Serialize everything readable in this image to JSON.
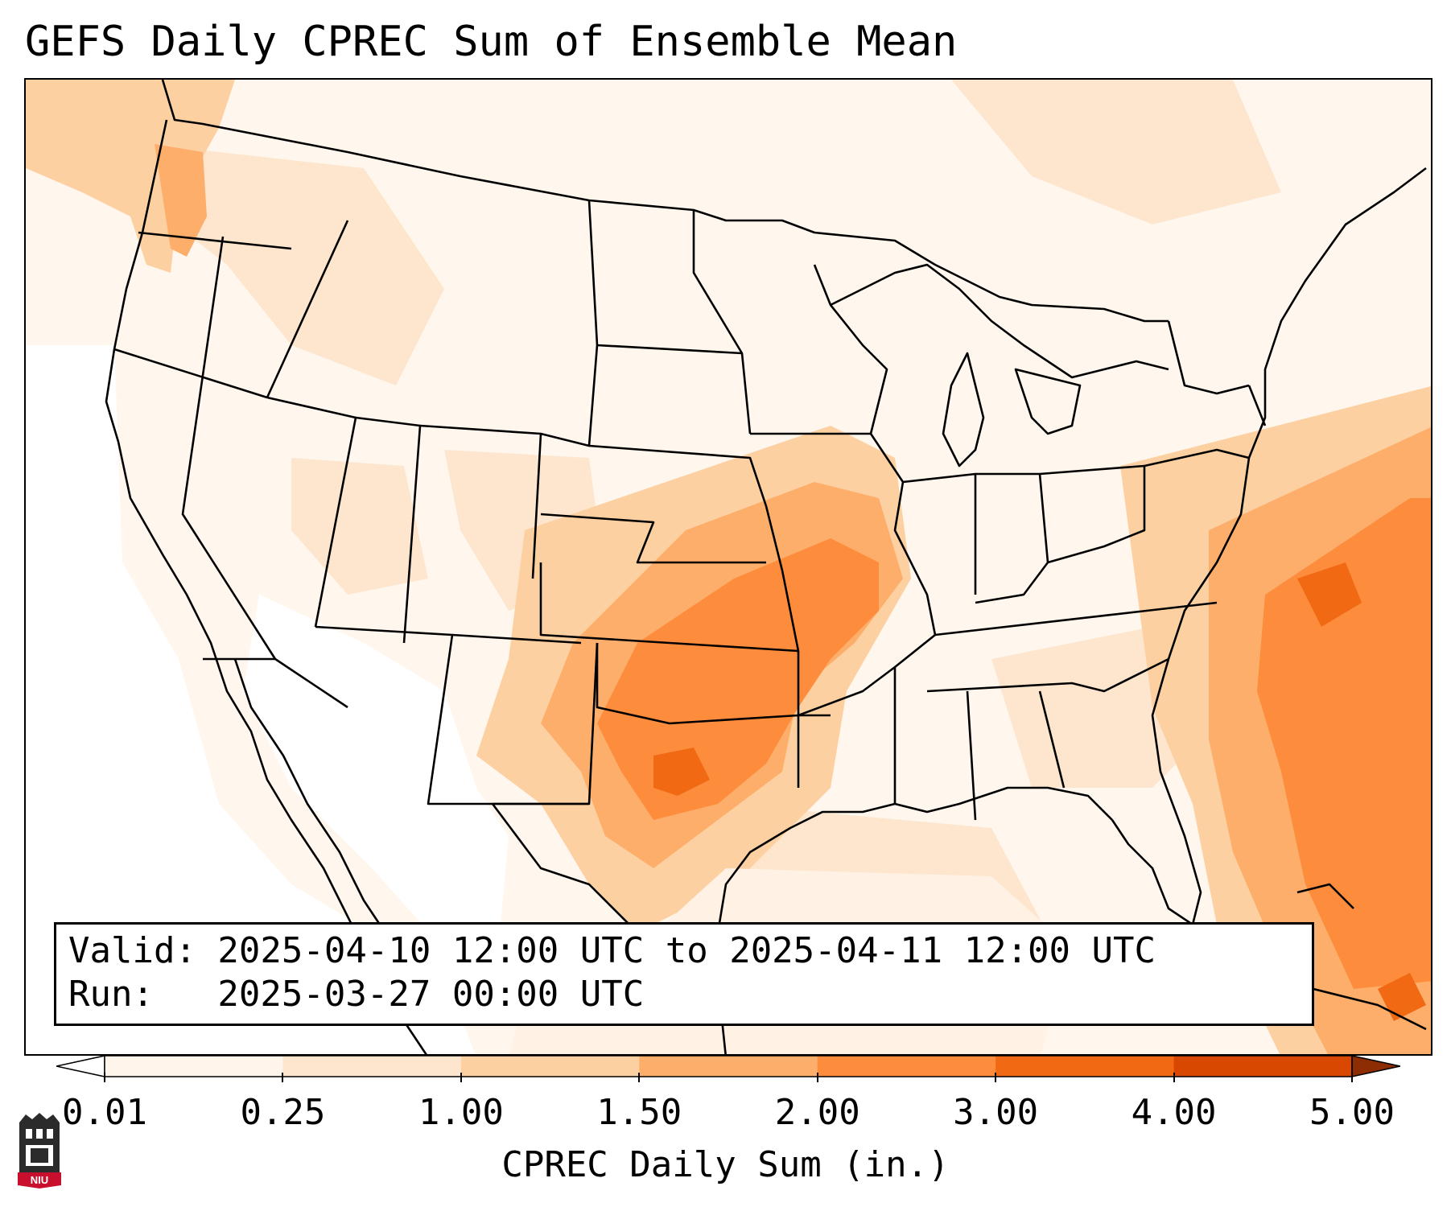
{
  "title": "GEFS Daily CPREC Sum of Ensemble Mean",
  "info": {
    "valid_line": "Valid: 2025-04-10 12:00 UTC to 2025-04-11 12:00 UTC",
    "run_line": "Run:   2025-03-27 00:00 UTC"
  },
  "colorbar": {
    "label": "CPREC Daily Sum (in.)",
    "ticks": [
      "0.01",
      "0.25",
      "1.00",
      "1.50",
      "2.00",
      "3.00",
      "4.00",
      "5.00"
    ],
    "colors": [
      "#fff5eb",
      "#fee6ce",
      "#fdd0a2",
      "#fdae6b",
      "#fd8d3c",
      "#f16913",
      "#d94801"
    ],
    "under_color": "#ffffff",
    "over_color": "#8c2d04"
  },
  "logo": {
    "text": "NIU",
    "colors": {
      "bg": "#2b2b2b",
      "accent": "#c8102e"
    }
  },
  "map": {
    "background_color": "#fff6ee",
    "precip_areas": [
      {
        "level": "0.25",
        "color": "#fee6ce"
      },
      {
        "level": "1.00",
        "color": "#fdd0a2"
      },
      {
        "level": "1.50",
        "color": "#fdae6b"
      },
      {
        "level": "2.00",
        "color": "#fd8d3c"
      },
      {
        "level": "3.00",
        "color": "#f16913"
      }
    ]
  }
}
